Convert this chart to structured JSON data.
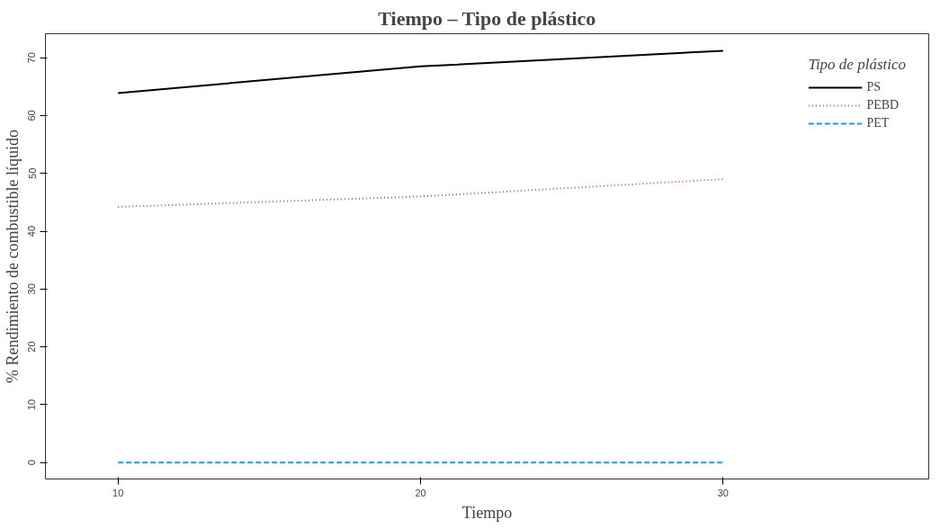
{
  "chart_data": {
    "type": "line",
    "title": "Tiempo – Tipo de plástico",
    "xlabel": "Tiempo",
    "ylabel": "% Rendimiento de combustible líquido",
    "legend_title": "Tipo de plástico",
    "x": [
      10,
      20,
      30
    ],
    "series": [
      {
        "name": "PS",
        "color": "#000000",
        "values": [
          63.9,
          68.5,
          71.2
        ],
        "line_style": "solid"
      },
      {
        "name": "PEBD",
        "color": "#c9506a",
        "values": [
          44.2,
          46.0,
          49.0
        ],
        "line_style": "dotted"
      },
      {
        "name": "PET",
        "color": "#2297e6",
        "values": [
          0,
          0,
          0
        ],
        "line_style": "dashed"
      }
    ],
    "xlim": [
      7.6,
      36.8
    ],
    "ylim": [
      -2.85,
      74.15
    ],
    "xticks": [
      10,
      20,
      30
    ],
    "yticks": [
      0,
      10,
      20,
      30,
      40,
      50,
      60,
      70
    ],
    "grid": false,
    "legend": "top right",
    "marker": "none"
  }
}
